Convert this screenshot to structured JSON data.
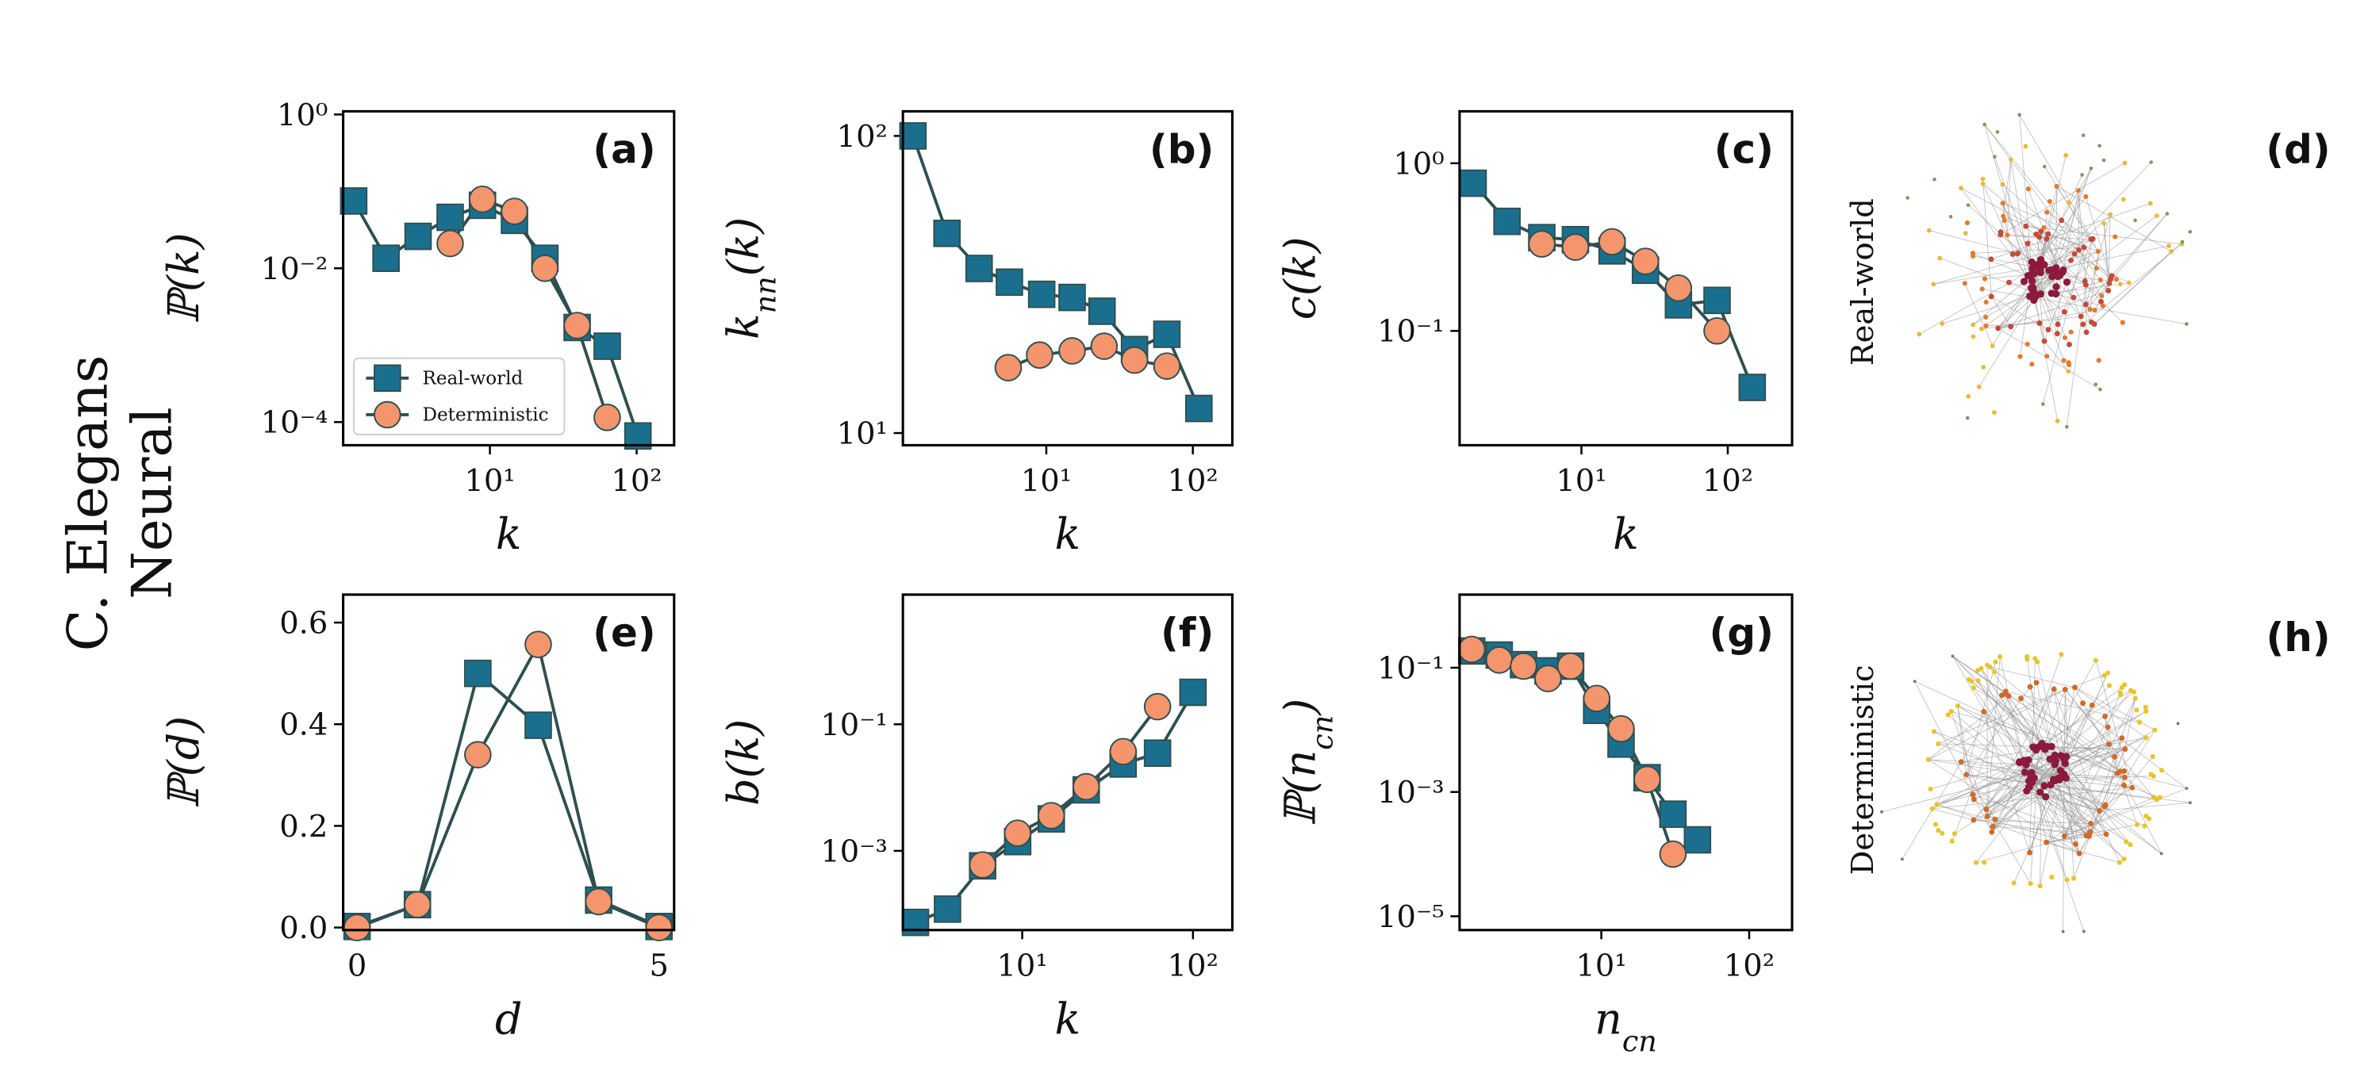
{
  "row_label": [
    "C. Elegans",
    "Neural"
  ],
  "networks": [
    {
      "caption": "Real-world",
      "label": "(d)"
    },
    {
      "caption": "Deterministic",
      "label": "(h)"
    }
  ],
  "chart_data": [
    {
      "type": "line",
      "label": "(a)",
      "xscale": "log",
      "yscale": "log",
      "xlabel": [
        "k"
      ],
      "ylabel": [
        "ℙ(k)"
      ],
      "xlim": [
        1,
        180
      ],
      "ylim": [
        5e-05,
        1.1
      ],
      "xticks": [
        {
          "value": 10,
          "label": "10¹"
        },
        {
          "value": 100,
          "label": "10²"
        }
      ],
      "yticks": [
        {
          "value": 1,
          "label": "10⁰"
        },
        {
          "value": 0.01,
          "label": "10⁻²"
        },
        {
          "value": 0.0001,
          "label": "10⁻⁴"
        }
      ],
      "legend": "lower left",
      "series": [
        {
          "name": "Real-world",
          "color": "#1b6f8e",
          "marker": "square",
          "x": [
            1.18,
            1.96,
            3.24,
            5.36,
            8.9,
            14.7,
            23.7,
            39.3,
            63,
            102
          ],
          "values": [
            0.075,
            0.0135,
            0.026,
            0.046,
            0.066,
            0.042,
            0.0135,
            0.0017,
            0.00097,
            6.6e-05
          ]
        },
        {
          "name": "Deterministic",
          "color": "#f4956d",
          "marker": "circle",
          "x": [
            5.36,
            8.9,
            14.7,
            23.7,
            39.3,
            63
          ],
          "values": [
            0.021,
            0.079,
            0.055,
            0.01,
            0.0018,
            0.000115
          ]
        }
      ]
    },
    {
      "type": "line",
      "label": "(b)",
      "xscale": "log",
      "yscale": "log",
      "xlabel": [
        "k"
      ],
      "ylabel": [
        "k",
        "nn",
        "(k)"
      ],
      "xlim": [
        1.05,
        186
      ],
      "ylim": [
        9.1,
        121
      ],
      "xticks": [
        {
          "value": 10,
          "label": "10¹"
        },
        {
          "value": 100,
          "label": "10²"
        }
      ],
      "yticks": [
        {
          "value": 10,
          "label": "10¹"
        },
        {
          "value": 100,
          "label": "10²"
        }
      ],
      "series": [
        {
          "color": "#1b6f8e",
          "marker": "square",
          "x": [
            1.23,
            2.1,
            3.48,
            5.6,
            9.3,
            15,
            24,
            40,
            66.5,
            110
          ],
          "values": [
            100,
            47,
            35.8,
            32.2,
            29.3,
            28.6,
            25.7,
            19.1,
            21.5,
            12.1
          ]
        },
        {
          "color": "#f4956d",
          "marker": "circle",
          "x": [
            5.5,
            9,
            15,
            24.8,
            40,
            66.5
          ],
          "values": [
            16.6,
            18.3,
            18.9,
            19.6,
            17.6,
            16.8
          ]
        }
      ]
    },
    {
      "type": "line",
      "label": "(c)",
      "xscale": "log",
      "yscale": "log",
      "xlabel": [
        "k"
      ],
      "ylabel": [
        "c(k)"
      ],
      "xlim": [
        1.47,
        275
      ],
      "ylim": [
        0.0208,
        2.04
      ],
      "xticks": [
        {
          "value": 10,
          "label": "10¹"
        },
        {
          "value": 100,
          "label": "10²"
        }
      ],
      "yticks": [
        {
          "value": 1,
          "label": "10⁰"
        },
        {
          "value": 0.1,
          "label": "10⁻¹"
        }
      ],
      "series": [
        {
          "color": "#1b6f8e",
          "marker": "square",
          "x": [
            1.82,
            3.1,
            5.36,
            9.1,
            16.2,
            27.4,
            46,
            84.5,
            147
          ],
          "values": [
            0.76,
            0.45,
            0.36,
            0.35,
            0.3,
            0.23,
            0.143,
            0.152,
            0.046
          ]
        },
        {
          "color": "#f4956d",
          "marker": "circle",
          "x": [
            5.36,
            9.1,
            16.2,
            27.4,
            46,
            84.5
          ],
          "values": [
            0.33,
            0.316,
            0.34,
            0.26,
            0.18,
            0.1
          ]
        }
      ]
    },
    {
      "type": "line",
      "label": "(e)",
      "xlabel": [
        "d"
      ],
      "ylabel": [
        "ℙ(d)"
      ],
      "xlim": [
        -0.23,
        5.25
      ],
      "ylim": [
        -0.005,
        0.655
      ],
      "xticks": [
        0,
        5
      ],
      "yticks": [
        {
          "value": 0,
          "label": "0.0"
        },
        0.2,
        0.4,
        0.6
      ],
      "series": [
        {
          "color": "#1b6f8e",
          "marker": "square",
          "x": [
            0,
            1,
            2,
            3,
            4,
            5
          ],
          "values": [
            0.002,
            0.045,
            0.5,
            0.398,
            0.054,
            0.002
          ]
        },
        {
          "color": "#f4956d",
          "marker": "circle",
          "x": [
            0,
            1,
            2,
            3,
            4,
            5
          ],
          "values": [
            0,
            0.045,
            0.34,
            0.557,
            0.051,
            0
          ]
        }
      ]
    },
    {
      "type": "line",
      "label": "(f)",
      "xscale": "log",
      "yscale": "log",
      "xlabel": [
        "k"
      ],
      "ylabel": [
        "b(k)"
      ],
      "xlim": [
        2,
        170
      ],
      "ylim": [
        5.6e-05,
        11.2
      ],
      "xticks": [
        {
          "value": 10,
          "label": "10¹"
        },
        {
          "value": 100,
          "label": "10²"
        }
      ],
      "yticks": [
        {
          "value": 0.1,
          "label": "10⁻¹"
        },
        {
          "value": 0.001,
          "label": "10⁻³"
        }
      ],
      "series": [
        {
          "color": "#1b6f8e",
          "marker": "square",
          "x": [
            2.37,
            3.65,
            5.86,
            9.4,
            14.8,
            23.7,
            39,
            62,
            100
          ],
          "values": [
            7.4e-05,
            0.00012,
            0.00058,
            0.0014,
            0.0032,
            0.0092,
            0.0236,
            0.035,
            0.32
          ]
        },
        {
          "color": "#f4956d",
          "marker": "circle",
          "x": [
            5.86,
            9.4,
            14.8,
            23.7,
            39,
            62
          ],
          "values": [
            0.0006,
            0.0019,
            0.0036,
            0.0103,
            0.037,
            0.19
          ]
        }
      ]
    },
    {
      "type": "line",
      "label": "(g)",
      "xscale": "log",
      "yscale": "log",
      "xlabel": [
        "n",
        "cn"
      ],
      "ylabel": [
        "ℙ(n",
        "cn",
        ")"
      ],
      "xlim": [
        1.1,
        195
      ],
      "ylim": [
        6e-06,
        1.5
      ],
      "xticks": [
        {
          "value": 10,
          "label": "10¹"
        },
        {
          "value": 100,
          "label": "10²"
        }
      ],
      "yticks": [
        {
          "value": 0.1,
          "label": "10⁻¹"
        },
        {
          "value": 0.001,
          "label": "10⁻³"
        },
        {
          "value": 1e-05,
          "label": "10⁻⁵"
        }
      ],
      "series": [
        {
          "color": "#1b6f8e",
          "marker": "square",
          "x": [
            1.33,
            2.04,
            2.98,
            4.36,
            6.2,
            9.3,
            13.6,
            20.4,
            30.5,
            44.7
          ],
          "values": [
            0.186,
            0.16,
            0.112,
            0.089,
            0.106,
            0.0206,
            0.0059,
            0.0017,
            0.00044,
            0.00017
          ]
        },
        {
          "color": "#f4956d",
          "marker": "circle",
          "x": [
            1.33,
            2.04,
            2.98,
            4.36,
            6.2,
            9.3,
            13.6,
            20.4,
            30.5
          ],
          "values": [
            0.197,
            0.133,
            0.106,
            0.067,
            0.106,
            0.032,
            0.0104,
            0.0016,
            0.0001
          ]
        }
      ]
    }
  ]
}
